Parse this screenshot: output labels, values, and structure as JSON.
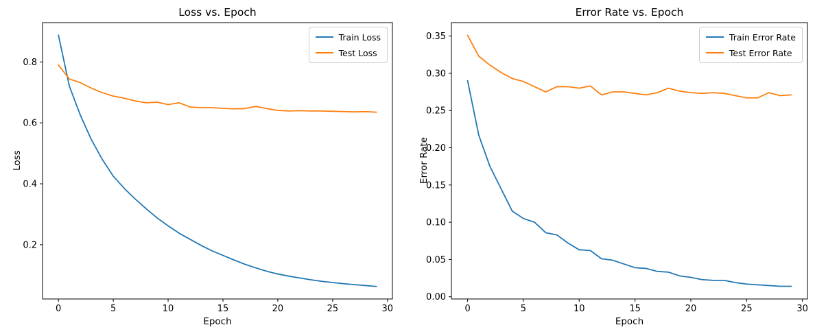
{
  "figure": {
    "background": "#ffffff",
    "accent_colors": {
      "train": "#1f77b4",
      "test": "#ff7f0e"
    }
  },
  "chart_data": [
    {
      "type": "line",
      "title": "Loss vs. Epoch",
      "xlabel": "Epoch",
      "ylabel": "Loss",
      "legend_position": "upper right",
      "grid": false,
      "xlim": [
        -1.45,
        30.45
      ],
      "ylim": [
        0.022,
        0.929
      ],
      "xticks": [
        0,
        5,
        10,
        15,
        20,
        25,
        30
      ],
      "xtick_labels": [
        "0",
        "5",
        "10",
        "15",
        "20",
        "25",
        "30"
      ],
      "yticks": [
        0.2,
        0.4,
        0.6,
        0.8
      ],
      "ytick_labels": [
        "0.2",
        "0.4",
        "0.6",
        "0.8"
      ],
      "x": [
        0,
        1,
        2,
        3,
        4,
        5,
        6,
        7,
        8,
        9,
        10,
        11,
        12,
        13,
        14,
        15,
        16,
        17,
        18,
        19,
        20,
        21,
        22,
        23,
        24,
        25,
        26,
        27,
        28,
        29
      ],
      "series": [
        {
          "name": "Train Loss",
          "color": "#1f77b4",
          "values": [
            0.888,
            0.72,
            0.625,
            0.545,
            0.48,
            0.425,
            0.385,
            0.35,
            0.318,
            0.288,
            0.262,
            0.238,
            0.218,
            0.198,
            0.18,
            0.165,
            0.15,
            0.136,
            0.124,
            0.113,
            0.104,
            0.097,
            0.091,
            0.085,
            0.08,
            0.076,
            0.072,
            0.069,
            0.066,
            0.063
          ]
        },
        {
          "name": "Test Loss",
          "color": "#ff7f0e",
          "values": [
            0.79,
            0.744,
            0.732,
            0.714,
            0.699,
            0.688,
            0.681,
            0.672,
            0.666,
            0.668,
            0.66,
            0.666,
            0.652,
            0.65,
            0.65,
            0.648,
            0.646,
            0.647,
            0.654,
            0.647,
            0.641,
            0.639,
            0.64,
            0.639,
            0.639,
            0.638,
            0.637,
            0.636,
            0.637,
            0.635
          ]
        }
      ]
    },
    {
      "type": "line",
      "title": "Error Rate vs. Epoch",
      "xlabel": "Epoch",
      "ylabel": "Error Rate",
      "legend_position": "upper right",
      "grid": false,
      "xlim": [
        -1.45,
        30.45
      ],
      "ylim": [
        -0.003,
        0.368
      ],
      "xticks": [
        0,
        5,
        10,
        15,
        20,
        25,
        30
      ],
      "xtick_labels": [
        "0",
        "5",
        "10",
        "15",
        "20",
        "25",
        "30"
      ],
      "yticks": [
        0.0,
        0.05,
        0.1,
        0.15,
        0.2,
        0.25,
        0.3,
        0.35
      ],
      "ytick_labels": [
        "0.00",
        "0.05",
        "0.10",
        "0.15",
        "0.20",
        "0.25",
        "0.30",
        "0.35"
      ],
      "x": [
        0,
        1,
        2,
        3,
        4,
        5,
        6,
        7,
        8,
        9,
        10,
        11,
        12,
        13,
        14,
        15,
        16,
        17,
        18,
        19,
        20,
        21,
        22,
        23,
        24,
        25,
        26,
        27,
        28,
        29
      ],
      "series": [
        {
          "name": "Train Error Rate",
          "color": "#1f77b4",
          "values": [
            0.29,
            0.217,
            0.175,
            0.145,
            0.115,
            0.105,
            0.1,
            0.086,
            0.083,
            0.072,
            0.063,
            0.062,
            0.051,
            0.049,
            0.044,
            0.039,
            0.038,
            0.034,
            0.033,
            0.028,
            0.026,
            0.023,
            0.022,
            0.022,
            0.019,
            0.017,
            0.016,
            0.015,
            0.014,
            0.014
          ]
        },
        {
          "name": "Test Error Rate",
          "color": "#ff7f0e",
          "values": [
            0.351,
            0.323,
            0.311,
            0.301,
            0.293,
            0.289,
            0.282,
            0.275,
            0.282,
            0.282,
            0.28,
            0.283,
            0.271,
            0.275,
            0.275,
            0.273,
            0.271,
            0.274,
            0.28,
            0.276,
            0.274,
            0.273,
            0.274,
            0.273,
            0.27,
            0.267,
            0.267,
            0.274,
            0.27,
            0.271
          ]
        }
      ]
    }
  ]
}
